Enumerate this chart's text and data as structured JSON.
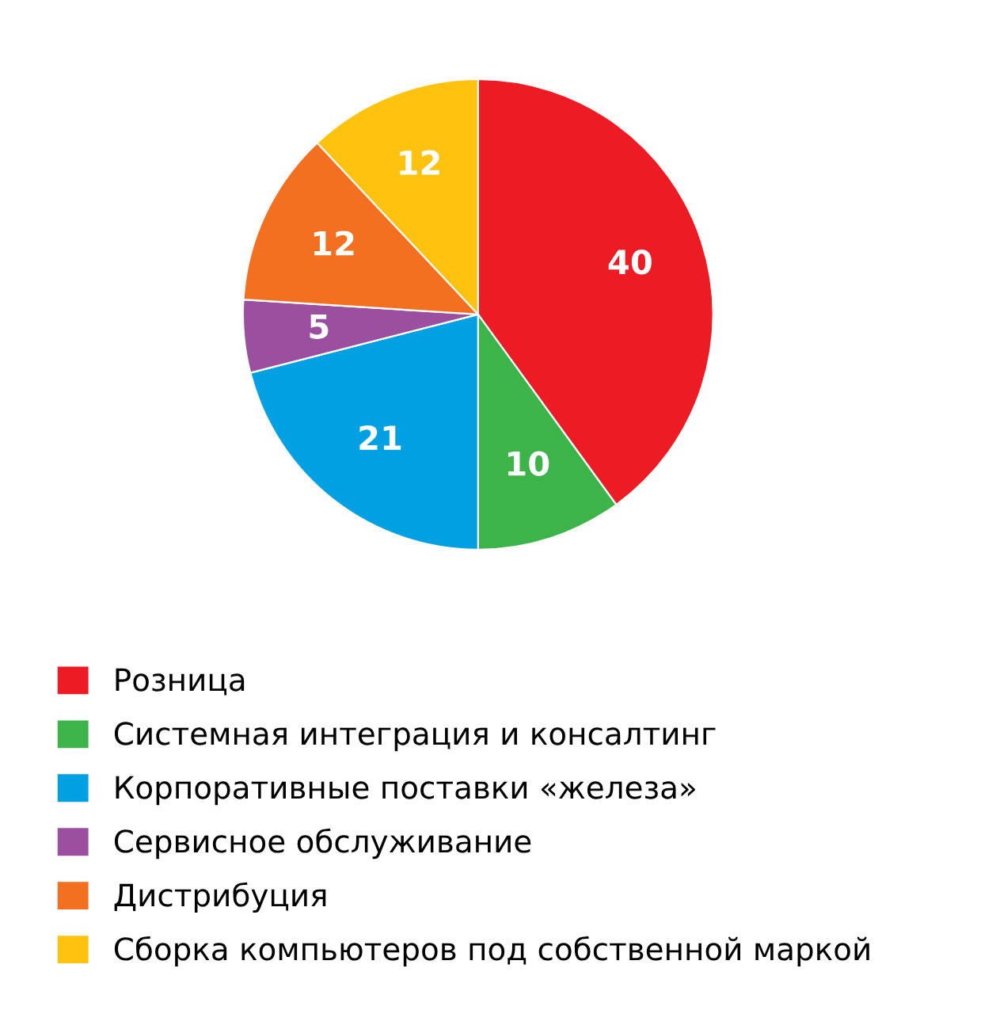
{
  "chart_data": {
    "type": "pie",
    "categories": [
      "Розница",
      "Системная интеграция и консалтинг",
      "Корпоративные поставки «железа»",
      "Сервисное обслуживание",
      "Дистрибуция",
      "Сборка компьютеров под собственной маркой"
    ],
    "values": [
      40,
      10,
      21,
      5,
      12,
      12
    ],
    "colors": [
      "#ed1c24",
      "#3cb44a",
      "#00a0e3",
      "#9b4f9f",
      "#f37021",
      "#ffc20e"
    ],
    "data_labels": true,
    "legend": "bottom"
  }
}
